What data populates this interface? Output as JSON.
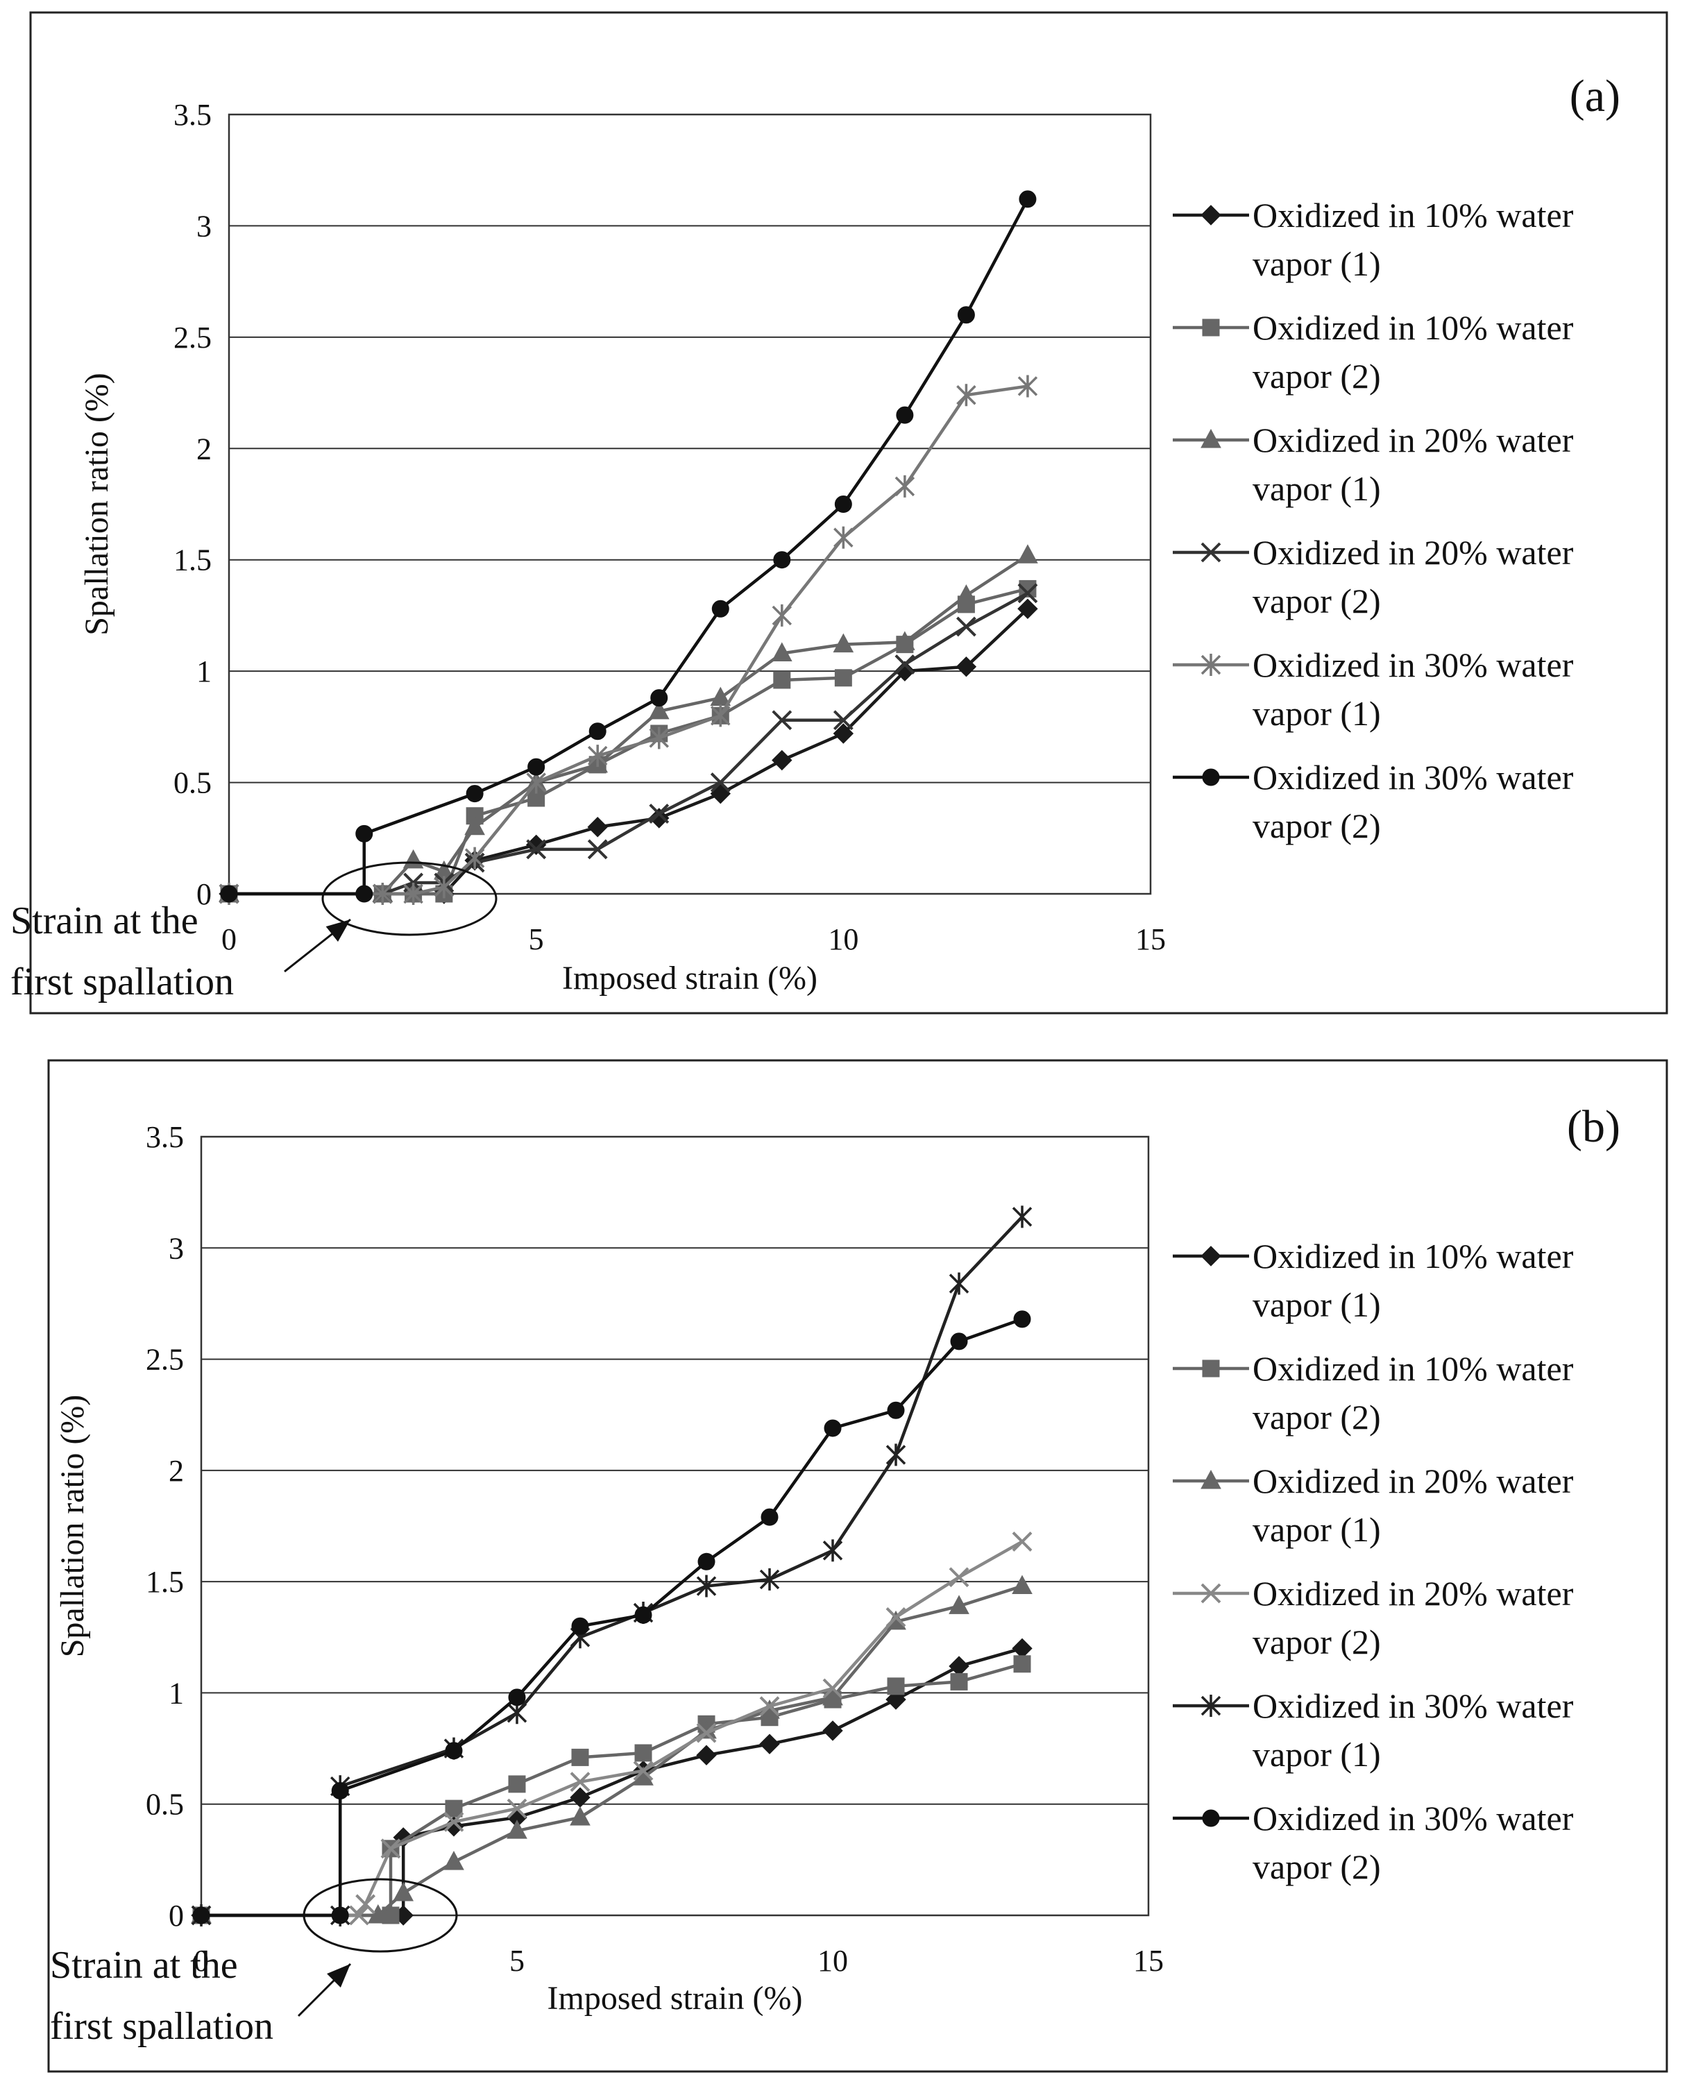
{
  "chart_data": [
    {
      "type": "line",
      "panel_label": "(a)",
      "title": "",
      "xlabel": "Imposed strain (%)",
      "ylabel": "Spallation ratio (%)",
      "xlim": [
        0,
        15
      ],
      "ylim": [
        0,
        3.5
      ],
      "xticks": [
        "0",
        "5",
        "10",
        "15"
      ],
      "yticks": [
        "0",
        "0.5",
        "1",
        "1.5",
        "2",
        "2.5",
        "3",
        "3.5"
      ],
      "grid": "horizontal",
      "legend_position": "right",
      "annotation": [
        "Strain at the",
        "first spallation"
      ],
      "series": [
        {
          "name_lines": [
            "Oxidized in 10% water",
            "vapor (1)"
          ],
          "marker": "diamond",
          "color": "#1a1a1a",
          "points": [
            [
              0,
              0
            ],
            [
              2.5,
              0
            ],
            [
              3,
              0
            ],
            [
              3.5,
              0
            ],
            [
              4,
              0.15
            ],
            [
              5,
              0.22
            ],
            [
              6,
              0.3
            ],
            [
              7,
              0.34
            ],
            [
              8,
              0.45
            ],
            [
              9,
              0.6
            ],
            [
              10,
              0.72
            ],
            [
              11,
              1.0
            ],
            [
              12,
              1.02
            ],
            [
              13,
              1.28
            ]
          ]
        },
        {
          "name_lines": [
            "Oxidized in 10% water",
            "vapor (2)"
          ],
          "marker": "square",
          "color": "#666666",
          "points": [
            [
              0,
              0
            ],
            [
              2.5,
              0
            ],
            [
              3,
              0
            ],
            [
              3.5,
              0
            ],
            [
              4,
              0.35
            ],
            [
              5,
              0.43
            ],
            [
              6,
              0.58
            ],
            [
              7,
              0.72
            ],
            [
              8,
              0.8
            ],
            [
              9,
              0.96
            ],
            [
              10,
              0.97
            ],
            [
              11,
              1.12
            ],
            [
              12,
              1.3
            ],
            [
              13,
              1.37
            ]
          ]
        },
        {
          "name_lines": [
            "Oxidized in 20% water",
            "vapor (1)"
          ],
          "marker": "triangle",
          "color": "#666666",
          "points": [
            [
              0,
              0
            ],
            [
              2.5,
              0
            ],
            [
              3,
              0.15
            ],
            [
              3.5,
              0.1
            ],
            [
              4,
              0.3
            ],
            [
              5,
              0.5
            ],
            [
              6,
              0.58
            ],
            [
              7,
              0.82
            ],
            [
              8,
              0.88
            ],
            [
              9,
              1.08
            ],
            [
              10,
              1.12
            ],
            [
              11,
              1.13
            ],
            [
              12,
              1.34
            ],
            [
              13,
              1.52
            ]
          ]
        },
        {
          "name_lines": [
            "Oxidized in 20% water",
            "vapor (2)"
          ],
          "marker": "x",
          "color": "#333333",
          "points": [
            [
              0,
              0
            ],
            [
              2.5,
              0
            ],
            [
              3,
              0.05
            ],
            [
              3.5,
              0.05
            ],
            [
              4,
              0.14
            ],
            [
              5,
              0.2
            ],
            [
              6,
              0.2
            ],
            [
              7,
              0.36
            ],
            [
              8,
              0.5
            ],
            [
              9,
              0.78
            ],
            [
              10,
              0.78
            ],
            [
              11,
              1.03
            ],
            [
              12,
              1.2
            ],
            [
              13,
              1.35
            ]
          ]
        },
        {
          "name_lines": [
            "Oxidized in 30% water",
            "vapor (1)"
          ],
          "marker": "asterisk",
          "color": "#777777",
          "points": [
            [
              0,
              0
            ],
            [
              2.5,
              0
            ],
            [
              3,
              0
            ],
            [
              3.5,
              0.03
            ],
            [
              4,
              0.16
            ],
            [
              5,
              0.5
            ],
            [
              6,
              0.62
            ],
            [
              7,
              0.7
            ],
            [
              8,
              0.8
            ],
            [
              9,
              1.25
            ],
            [
              10,
              1.6
            ],
            [
              11,
              1.83
            ],
            [
              12,
              2.24
            ],
            [
              13,
              2.28
            ]
          ]
        },
        {
          "name_lines": [
            "Oxidized in 30% water",
            "vapor (2)"
          ],
          "marker": "circle",
          "color": "#111111",
          "points": [
            [
              0,
              0
            ],
            [
              2.2,
              0
            ],
            [
              2.2,
              0.27
            ],
            [
              4,
              0.45
            ],
            [
              5,
              0.57
            ],
            [
              6,
              0.73
            ],
            [
              7,
              0.88
            ],
            [
              8,
              1.28
            ],
            [
              9,
              1.5
            ],
            [
              10,
              1.75
            ],
            [
              11,
              2.15
            ],
            [
              12,
              2.6
            ],
            [
              13,
              3.12
            ]
          ]
        }
      ]
    },
    {
      "type": "line",
      "panel_label": "(b)",
      "title": "",
      "xlabel": "Imposed strain (%)",
      "ylabel": "Spallation ratio (%)",
      "xlim": [
        0,
        15
      ],
      "ylim": [
        0,
        3.5
      ],
      "xticks": [
        "0",
        "5",
        "10",
        "15"
      ],
      "yticks": [
        "0",
        "0.5",
        "1",
        "1.5",
        "2",
        "2.5",
        "3",
        "3.5"
      ],
      "grid": "horizontal",
      "legend_position": "right",
      "annotation": [
        "Strain at the",
        "first spallation"
      ],
      "series": [
        {
          "name_lines": [
            "Oxidized in 10% water",
            "vapor (1)"
          ],
          "marker": "diamond",
          "color": "#1a1a1a",
          "points": [
            [
              0,
              0
            ],
            [
              3.2,
              0
            ],
            [
              3.2,
              0.35
            ],
            [
              4,
              0.4
            ],
            [
              5,
              0.44
            ],
            [
              6,
              0.53
            ],
            [
              7,
              0.65
            ],
            [
              8,
              0.72
            ],
            [
              9,
              0.77
            ],
            [
              10,
              0.83
            ],
            [
              11,
              0.97
            ],
            [
              12,
              1.12
            ],
            [
              13,
              1.2
            ]
          ]
        },
        {
          "name_lines": [
            "Oxidized in 10% water",
            "vapor (2)"
          ],
          "marker": "square",
          "color": "#666666",
          "points": [
            [
              0,
              0
            ],
            [
              3,
              0
            ],
            [
              3,
              0.3
            ],
            [
              4,
              0.48
            ],
            [
              5,
              0.59
            ],
            [
              6,
              0.71
            ],
            [
              7,
              0.73
            ],
            [
              8,
              0.86
            ],
            [
              9,
              0.89
            ],
            [
              10,
              0.97
            ],
            [
              11,
              1.03
            ],
            [
              12,
              1.05
            ],
            [
              13,
              1.13
            ]
          ]
        },
        {
          "name_lines": [
            "Oxidized in 20% water",
            "vapor (1)"
          ],
          "marker": "triangle",
          "color": "#666666",
          "points": [
            [
              0,
              0
            ],
            [
              2.8,
              0
            ],
            [
              3.2,
              0.1
            ],
            [
              4,
              0.24
            ],
            [
              5,
              0.38
            ],
            [
              6,
              0.44
            ],
            [
              7,
              0.62
            ],
            [
              8,
              0.83
            ],
            [
              9,
              0.92
            ],
            [
              10,
              0.98
            ],
            [
              11,
              1.32
            ],
            [
              12,
              1.39
            ],
            [
              13,
              1.48
            ]
          ]
        },
        {
          "name_lines": [
            "Oxidized in 20% water",
            "vapor (2)"
          ],
          "marker": "x",
          "color": "#888888",
          "points": [
            [
              0,
              0
            ],
            [
              2.5,
              0
            ],
            [
              2.6,
              0.05
            ],
            [
              3,
              0.3
            ],
            [
              4,
              0.42
            ],
            [
              5,
              0.48
            ],
            [
              6,
              0.6
            ],
            [
              7,
              0.65
            ],
            [
              8,
              0.82
            ],
            [
              9,
              0.94
            ],
            [
              10,
              1.02
            ],
            [
              11,
              1.34
            ],
            [
              12,
              1.52
            ],
            [
              13,
              1.68
            ]
          ]
        },
        {
          "name_lines": [
            "Oxidized in 30% water",
            "vapor (1)"
          ],
          "marker": "asterisk",
          "color": "#222222",
          "points": [
            [
              0,
              0
            ],
            [
              2.2,
              0
            ],
            [
              2.2,
              0.58
            ],
            [
              4,
              0.75
            ],
            [
              5,
              0.91
            ],
            [
              6,
              1.25
            ],
            [
              7,
              1.36
            ],
            [
              8,
              1.48
            ],
            [
              9,
              1.51
            ],
            [
              10,
              1.64
            ],
            [
              11,
              2.07
            ],
            [
              12,
              2.84
            ],
            [
              13,
              3.14
            ]
          ]
        },
        {
          "name_lines": [
            "Oxidized in 30% water",
            "vapor (2)"
          ],
          "marker": "circle",
          "color": "#111111",
          "points": [
            [
              0,
              0
            ],
            [
              2.2,
              0
            ],
            [
              2.2,
              0.56
            ],
            [
              4,
              0.74
            ],
            [
              5,
              0.98
            ],
            [
              6,
              1.3
            ],
            [
              7,
              1.35
            ],
            [
              8,
              1.59
            ],
            [
              9,
              1.79
            ],
            [
              10,
              2.19
            ],
            [
              11,
              2.27
            ],
            [
              12,
              2.58
            ],
            [
              13,
              2.68
            ]
          ]
        }
      ]
    }
  ]
}
